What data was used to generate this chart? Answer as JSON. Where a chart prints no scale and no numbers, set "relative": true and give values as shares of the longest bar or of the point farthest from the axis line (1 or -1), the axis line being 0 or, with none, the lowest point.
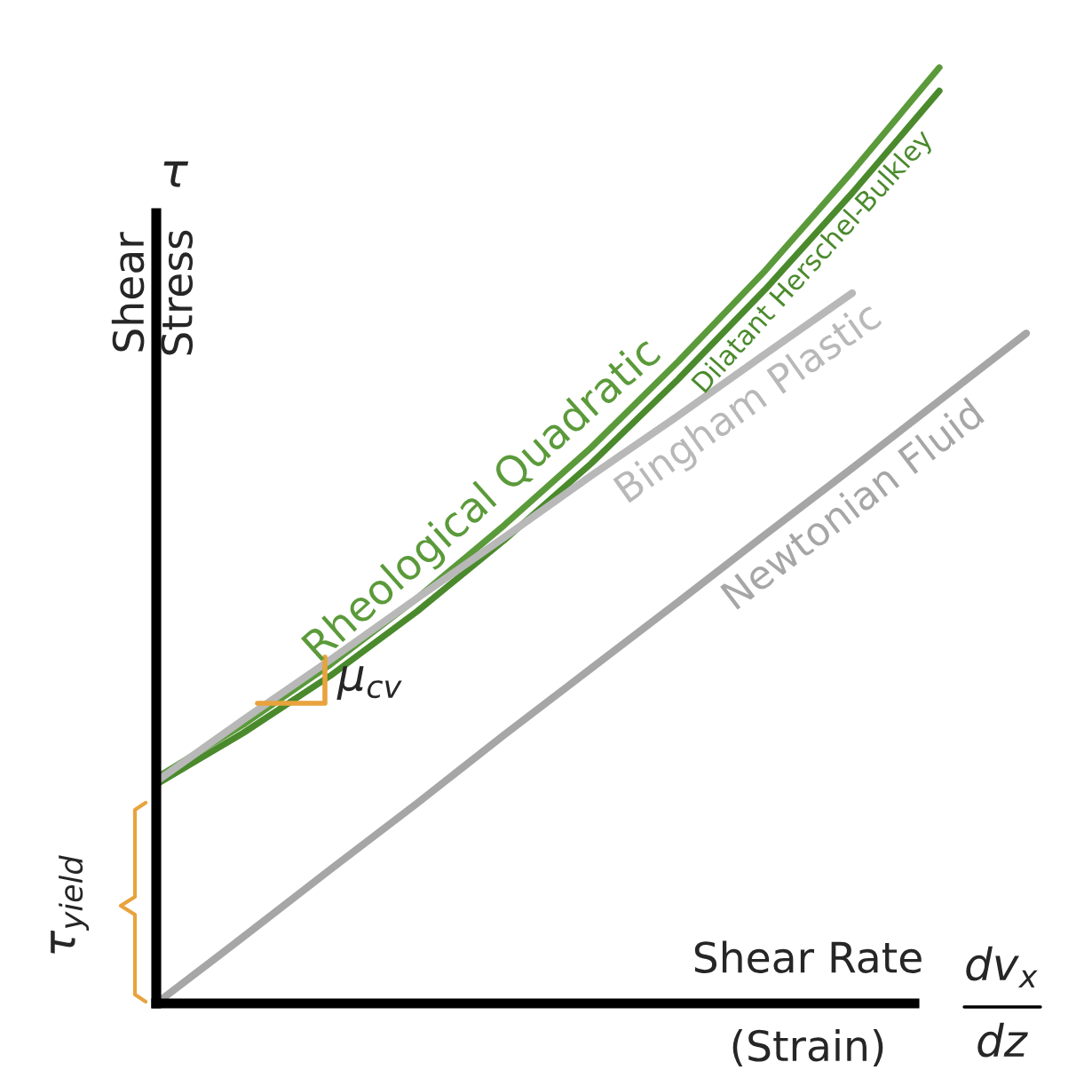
{
  "chart_data": {
    "type": "line",
    "relative": true,
    "xlabel": "Shear Rate (Strain)",
    "ylabel": "Shear Stress",
    "categories": [
      null,
      null,
      null,
      null,
      null,
      null,
      null,
      null,
      null,
      null,
      null
    ],
    "series": [
      {
        "name": "Rheological Quadratic",
        "color": "#5b9a3a",
        "values": [
          0.241,
          0.298,
          0.362,
          0.433,
          0.511,
          0.594,
          0.686,
          0.783,
          0.889,
          1,
          null
        ]
      },
      {
        "name": "Dilatant Herschel-Bulkley",
        "color": "#4a8a2c",
        "values": [
          0.234,
          0.289,
          0.35,
          0.419,
          0.495,
          0.577,
          0.667,
          0.763,
          0.866,
          0.975,
          null
        ]
      },
      {
        "name": "Bingham Plastic",
        "color": "#b8b8b8",
        "values": [
          0.237,
          0.303,
          0.367,
          0.433,
          0.498,
          0.564,
          0.628,
          0.694,
          0.759,
          null,
          null
        ]
      },
      {
        "name": "Newtonian Fluid",
        "color": "#a6a6a6",
        "values": [
          0,
          0.071,
          0.143,
          0.214,
          0.287,
          0.358,
          0.429,
          0.501,
          0.572,
          0.644,
          0.716
        ]
      }
    ],
    "annotations": [
      "τ",
      "τ$_{yield}$",
      "μ$_{cv}$",
      "dv$_{x}$",
      "dz"
    ]
  }
}
